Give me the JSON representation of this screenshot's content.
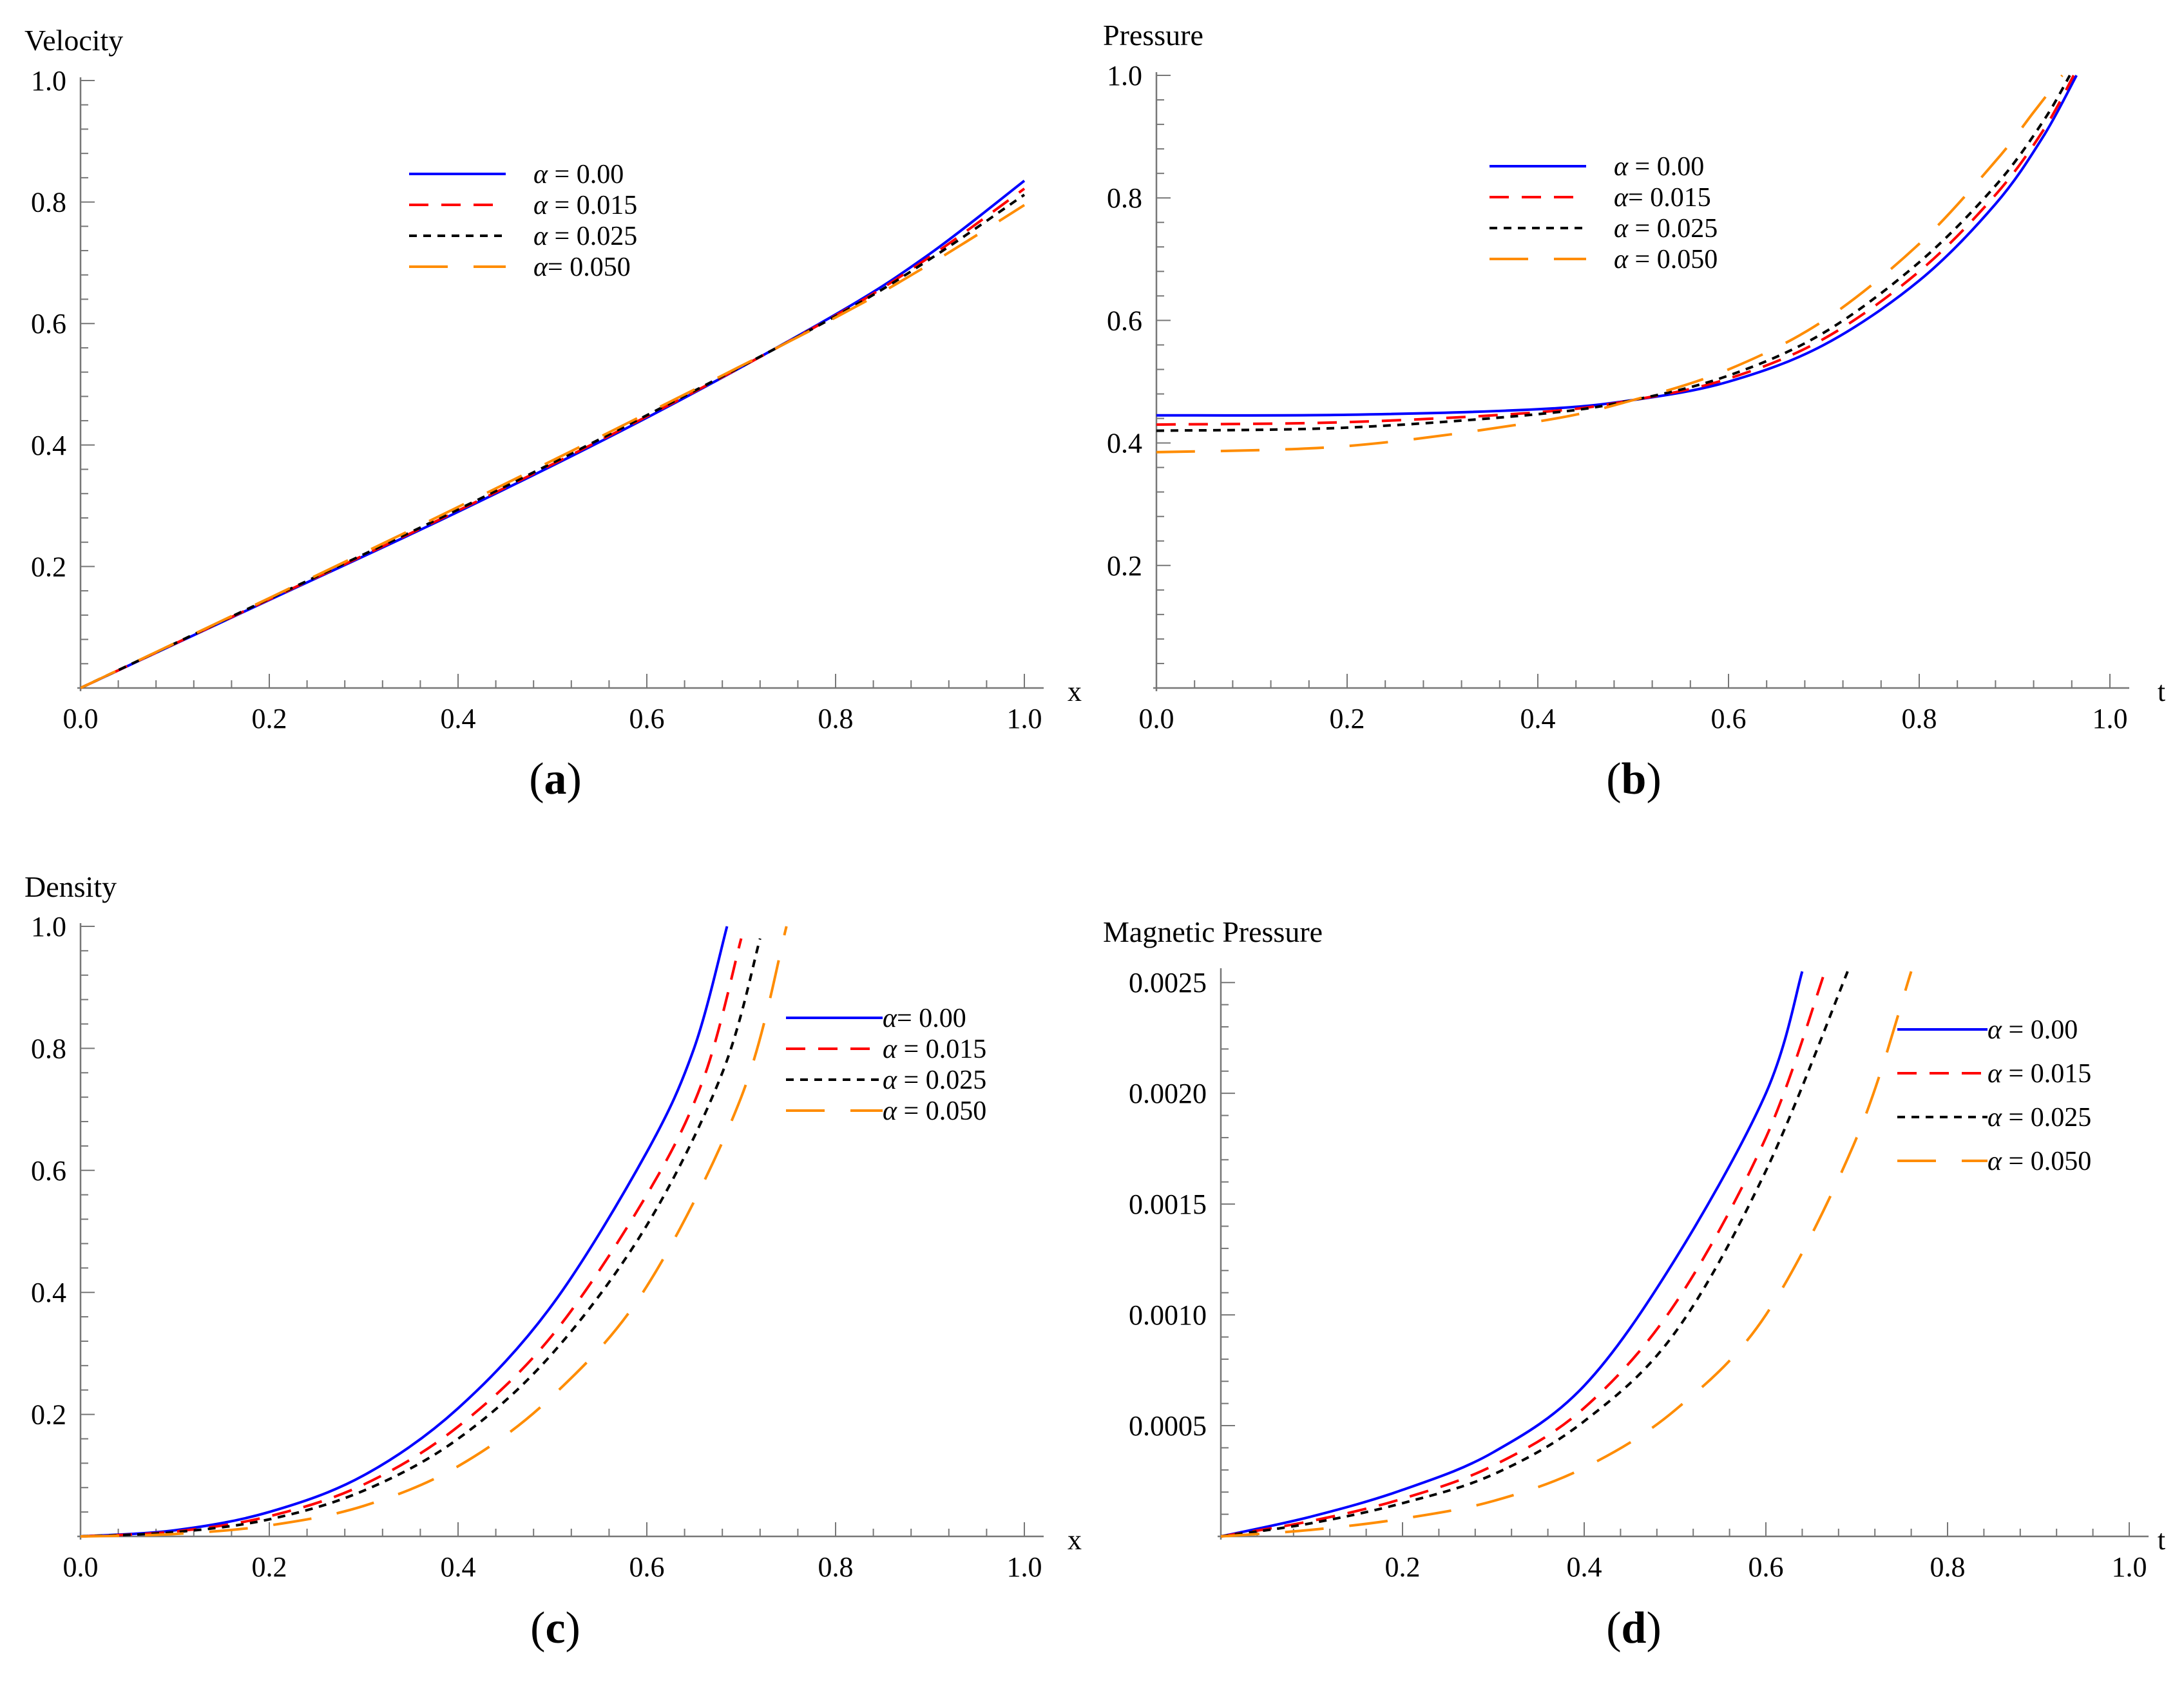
{
  "figure_title": "",
  "series_styles": [
    {
      "color": "#0000ff",
      "dash": ""
    },
    {
      "color": "#ff0000",
      "dash": "30,20"
    },
    {
      "color": "#000000",
      "dash": "12,10"
    },
    {
      "color": "#ff8c00",
      "dash": "60,40"
    }
  ],
  "chart_data": [
    {
      "type": "line",
      "panel_label": "a",
      "title": "Velocity",
      "xlabel": "x",
      "ylabel": "Velocity",
      "xlim": [
        0,
        1
      ],
      "ylim": [
        0,
        1
      ],
      "xticks": [
        "0.0",
        "0.2",
        "0.4",
        "0.6",
        "0.8",
        "1.0"
      ],
      "yticks": [
        "0.2",
        "0.4",
        "0.6",
        "0.8",
        "1.0"
      ],
      "legend_position": "upper-center",
      "legend": [
        "α = 0.00",
        "α = 0.015",
        "α = 0.025",
        "α= 0.050"
      ],
      "series": [
        {
          "name": "α = 0.00",
          "x": [
            0,
            0.2,
            0.4,
            0.6,
            0.8,
            0.9,
            1.0
          ],
          "y": [
            0,
            0.145,
            0.29,
            0.445,
            0.615,
            0.715,
            0.835
          ]
        },
        {
          "name": "α = 0.015",
          "x": [
            0,
            0.2,
            0.4,
            0.6,
            0.8,
            0.9,
            1.0
          ],
          "y": [
            0,
            0.146,
            0.292,
            0.447,
            0.613,
            0.71,
            0.822
          ]
        },
        {
          "name": "α = 0.025",
          "x": [
            0,
            0.2,
            0.4,
            0.6,
            0.8,
            0.9,
            1.0
          ],
          "y": [
            0,
            0.147,
            0.294,
            0.449,
            0.612,
            0.706,
            0.812
          ]
        },
        {
          "name": "α= 0.050",
          "x": [
            0,
            0.2,
            0.4,
            0.6,
            0.8,
            0.9,
            1.0
          ],
          "y": [
            0,
            0.148,
            0.298,
            0.452,
            0.61,
            0.698,
            0.795
          ]
        }
      ]
    },
    {
      "type": "line",
      "panel_label": "b",
      "title": "Pressure",
      "xlabel": "t",
      "ylabel": "Pressure",
      "xlim": [
        0,
        1
      ],
      "ylim": [
        0,
        1
      ],
      "xticks": [
        "0.0",
        "0.2",
        "0.4",
        "0.6",
        "0.8",
        "1.0"
      ],
      "yticks": [
        "0.2",
        "0.4",
        "0.6",
        "0.8",
        "1.0"
      ],
      "legend_position": "upper-center",
      "legend": [
        "α = 0.00",
        "α= 0.015",
        "α = 0.025",
        "α = 0.050"
      ],
      "series": [
        {
          "name": "α = 0.00",
          "x": [
            0,
            0.2,
            0.4,
            0.5,
            0.6,
            0.7,
            0.8,
            0.88,
            0.93,
            0.965
          ],
          "y": [
            0.445,
            0.446,
            0.455,
            0.47,
            0.5,
            0.56,
            0.665,
            0.79,
            0.9,
            1.0
          ]
        },
        {
          "name": "α= 0.015",
          "x": [
            0,
            0.2,
            0.4,
            0.5,
            0.6,
            0.7,
            0.8,
            0.88,
            0.93,
            0.962
          ],
          "y": [
            0.43,
            0.434,
            0.45,
            0.47,
            0.505,
            0.57,
            0.68,
            0.805,
            0.91,
            1.0
          ]
        },
        {
          "name": "α = 0.025",
          "x": [
            0,
            0.2,
            0.4,
            0.5,
            0.6,
            0.7,
            0.8,
            0.88,
            0.93,
            0.958
          ],
          "y": [
            0.42,
            0.425,
            0.447,
            0.47,
            0.51,
            0.58,
            0.695,
            0.82,
            0.925,
            1.0
          ]
        },
        {
          "name": "α = 0.050",
          "x": [
            0,
            0.2,
            0.4,
            0.5,
            0.6,
            0.7,
            0.8,
            0.88,
            0.92,
            0.95
          ],
          "y": [
            0.385,
            0.395,
            0.435,
            0.47,
            0.52,
            0.6,
            0.725,
            0.86,
            0.94,
            1.0
          ]
        }
      ]
    },
    {
      "type": "line",
      "panel_label": "c",
      "title": "Density",
      "xlabel": "x",
      "ylabel": "Density",
      "xlim": [
        0,
        1
      ],
      "ylim": [
        0,
        1
      ],
      "xticks": [
        "0.0",
        "0.2",
        "0.4",
        "0.6",
        "0.8",
        "1.0"
      ],
      "yticks": [
        "0.2",
        "0.4",
        "0.6",
        "0.8",
        "1.0"
      ],
      "legend_position": "right",
      "legend": [
        "α= 0.00",
        "α = 0.015",
        "α = 0.025",
        "α = 0.050"
      ],
      "series": [
        {
          "name": "α= 0.00",
          "x": [
            0,
            0.1,
            0.2,
            0.3,
            0.4,
            0.5,
            0.6,
            0.65,
            0.685
          ],
          "y": [
            0,
            0.01,
            0.04,
            0.1,
            0.21,
            0.38,
            0.63,
            0.8,
            1.0
          ]
        },
        {
          "name": "α = 0.015",
          "x": [
            0,
            0.1,
            0.2,
            0.3,
            0.4,
            0.5,
            0.6,
            0.66,
            0.7
          ],
          "y": [
            0,
            0.008,
            0.033,
            0.085,
            0.18,
            0.33,
            0.56,
            0.75,
            0.98
          ]
        },
        {
          "name": "α = 0.025",
          "x": [
            0,
            0.1,
            0.2,
            0.3,
            0.4,
            0.5,
            0.6,
            0.68,
            0.72
          ],
          "y": [
            0,
            0.007,
            0.028,
            0.075,
            0.16,
            0.3,
            0.51,
            0.76,
            0.98
          ]
        },
        {
          "name": "α = 0.050",
          "x": [
            0,
            0.1,
            0.2,
            0.3,
            0.4,
            0.5,
            0.6,
            0.7,
            0.748
          ],
          "y": [
            0,
            0.004,
            0.018,
            0.05,
            0.115,
            0.23,
            0.41,
            0.72,
            1.0
          ]
        }
      ]
    },
    {
      "type": "line",
      "panel_label": "d",
      "title": "Magnetic Pressure",
      "xlabel": "t",
      "ylabel": "Magnetic Pressure",
      "xlim": [
        0,
        1
      ],
      "ylim": [
        0,
        0.00255
      ],
      "xticks": [
        "0.2",
        "0.4",
        "0.6",
        "0.8",
        "1.0"
      ],
      "yticks": [
        "0.0005",
        "0.0010",
        "0.0015",
        "0.0020",
        "0.0025"
      ],
      "legend_position": "right",
      "legend": [
        "α = 0.00",
        "α = 0.015",
        "α = 0.025",
        "α = 0.050"
      ],
      "series": [
        {
          "name": "α = 0.00",
          "x": [
            0,
            0.1,
            0.2,
            0.3,
            0.4,
            0.5,
            0.6,
            0.64
          ],
          "y": [
            0,
            9e-05,
            0.00021,
            0.00038,
            0.00068,
            0.00125,
            0.002,
            0.00255
          ]
        },
        {
          "name": "α = 0.015",
          "x": [
            0,
            0.1,
            0.2,
            0.3,
            0.4,
            0.5,
            0.6,
            0.665
          ],
          "y": [
            0,
            7e-05,
            0.00017,
            0.00032,
            0.00058,
            0.00105,
            0.0018,
            0.00255
          ]
        },
        {
          "name": "α = 0.025",
          "x": [
            0,
            0.1,
            0.2,
            0.3,
            0.4,
            0.5,
            0.6,
            0.69
          ],
          "y": [
            0,
            6e-05,
            0.00015,
            0.00028,
            0.00052,
            0.00092,
            0.00165,
            0.00255
          ]
        },
        {
          "name": "α = 0.050",
          "x": [
            0,
            0.1,
            0.2,
            0.3,
            0.4,
            0.5,
            0.6,
            0.7,
            0.76
          ],
          "y": [
            0,
            3e-05,
            8e-05,
            0.00016,
            0.00031,
            0.00057,
            0.001,
            0.0018,
            0.00255
          ]
        }
      ]
    }
  ]
}
